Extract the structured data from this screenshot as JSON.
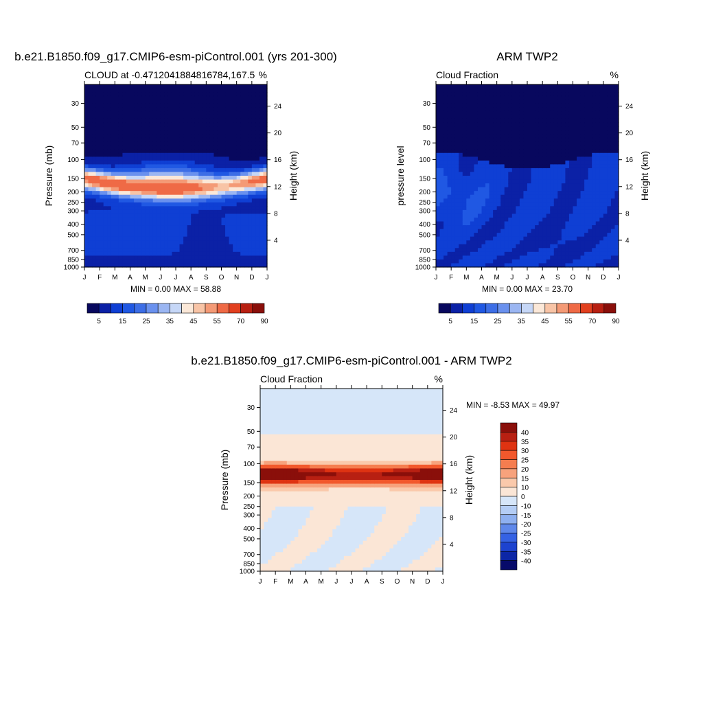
{
  "chart_data": [
    {
      "type": "heatmap",
      "id": "model",
      "title": "b.e21.B1850.f09_g17.CMIP6-esm-piControl.001 (yrs 201-300)",
      "left_label": "CLOUD at -0.4712041884816784,167.5",
      "right_label": "%",
      "ylabel": "Pressure (mb)",
      "y2label": "Height (km)",
      "x_ticks": [
        "J",
        "F",
        "M",
        "A",
        "M",
        "J",
        "J",
        "A",
        "S",
        "O",
        "N",
        "D",
        "J"
      ],
      "y_ticks": [
        30,
        50,
        70,
        100,
        150,
        200,
        250,
        300,
        400,
        500,
        700,
        850,
        1000
      ],
      "y2_ticks": [
        24,
        20,
        16,
        12,
        8,
        4
      ],
      "ylim": [
        1000,
        20
      ],
      "stats": "MIN =   0.00 MAX =  58.88",
      "levels": [
        5,
        10,
        15,
        20,
        25,
        30,
        35,
        40,
        45,
        50,
        55,
        60,
        70,
        80,
        90
      ],
      "colorbar_labels": [
        "5",
        "15",
        "25",
        "35",
        "45",
        "55",
        "70",
        "90"
      ],
      "colorbar_orientation": "horizontal"
    },
    {
      "type": "heatmap",
      "id": "obs",
      "title": "ARM TWP2",
      "left_label": "Cloud Fraction",
      "right_label": "%",
      "ylabel": "pressure level",
      "y2label": "Height (km)",
      "x_ticks": [
        "J",
        "F",
        "M",
        "A",
        "M",
        "J",
        "J",
        "A",
        "S",
        "O",
        "N",
        "D",
        "J"
      ],
      "y_ticks": [
        30,
        50,
        70,
        100,
        150,
        200,
        250,
        300,
        400,
        500,
        700,
        850,
        1000
      ],
      "y2_ticks": [
        24,
        20,
        16,
        12,
        8,
        4
      ],
      "ylim": [
        1000,
        20
      ],
      "stats": "MIN =   0.00 MAX =  23.70",
      "levels": [
        5,
        10,
        15,
        20,
        25,
        30,
        35,
        40,
        45,
        50,
        55,
        60,
        70,
        80,
        90
      ],
      "colorbar_labels": [
        "5",
        "15",
        "25",
        "35",
        "45",
        "55",
        "70",
        "90"
      ],
      "colorbar_orientation": "horizontal"
    },
    {
      "type": "heatmap",
      "id": "diff",
      "title": "b.e21.B1850.f09_g17.CMIP6-esm-piControl.001 - ARM TWP2",
      "left_label": "Cloud Fraction",
      "right_label": "%",
      "ylabel": "Pressure (mb)",
      "y2label": "Height (km)",
      "x_ticks": [
        "J",
        "F",
        "M",
        "A",
        "M",
        "J",
        "J",
        "A",
        "S",
        "O",
        "N",
        "D",
        "J"
      ],
      "y_ticks": [
        30,
        50,
        70,
        100,
        150,
        200,
        250,
        300,
        400,
        500,
        700,
        850,
        1000
      ],
      "y2_ticks": [
        24,
        20,
        16,
        12,
        8,
        4
      ],
      "ylim": [
        1000,
        20
      ],
      "stats": "MIN =  -8.53 MAX =  49.97",
      "levels": [
        -40,
        -35,
        -30,
        -25,
        -20,
        -15,
        -10,
        0,
        10,
        15,
        20,
        25,
        30,
        35,
        40
      ],
      "colorbar_labels": [
        "40",
        "35",
        "30",
        "25",
        "20",
        "15",
        "10",
        "0",
        "-10",
        "-15",
        "-20",
        "-25",
        "-30",
        "-35",
        "-40"
      ],
      "colorbar_orientation": "vertical"
    }
  ],
  "colormaps": {
    "sequential": [
      "#08085e",
      "#0b21a6",
      "#0f3fd4",
      "#2058e3",
      "#3d6ee6",
      "#6a91ee",
      "#9bb6f2",
      "#c6d7f7",
      "#fbe8d8",
      "#f8c4a6",
      "#f49a76",
      "#ef6a46",
      "#e2401f",
      "#b82012",
      "#8a0f0a"
    ],
    "diverging": [
      "#8a0f0a",
      "#b82012",
      "#df3312",
      "#f2582c",
      "#f57d4f",
      "#f7a27c",
      "#fac9ab",
      "#fbe6d6",
      "#d6e6f9",
      "#b4cdf5",
      "#8eb0f0",
      "#5f88ea",
      "#3562e4",
      "#1d43cf",
      "#0c26a6",
      "#070a6a"
    ]
  }
}
